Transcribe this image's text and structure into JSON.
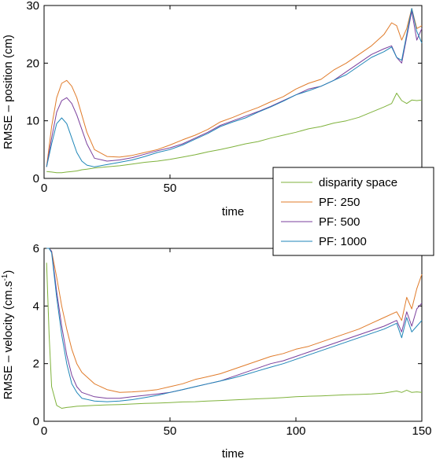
{
  "colors": {
    "disparity": "#7fb23c",
    "pf250": "#e07b2a",
    "pf500": "#7a3f9c",
    "pf1000": "#1f86b8"
  },
  "legend": {
    "entries": [
      "disparity space",
      "PF: 250",
      "PF: 500",
      "PF: 1000"
    ],
    "placement": "overlapping bottom-right of top plot"
  },
  "chart_data": [
    {
      "type": "line",
      "title": "",
      "xlabel": "time",
      "ylabel": "RMSE – position (cm)",
      "xlim": [
        0,
        150
      ],
      "ylim": [
        0,
        30
      ],
      "xticks": [
        0,
        50,
        100,
        150
      ],
      "yticks": [
        0,
        10,
        20,
        30
      ],
      "grid": false,
      "x": [
        1,
        3,
        5,
        7,
        9,
        11,
        13,
        15,
        17,
        20,
        25,
        30,
        35,
        40,
        45,
        50,
        55,
        60,
        65,
        70,
        75,
        80,
        85,
        90,
        95,
        100,
        105,
        110,
        115,
        120,
        125,
        130,
        135,
        138,
        140,
        142,
        144,
        146,
        148,
        150
      ],
      "series": [
        {
          "name": "disparity space",
          "color_key": "disparity",
          "values": [
            1.2,
            1.1,
            1.0,
            1.0,
            1.1,
            1.2,
            1.3,
            1.5,
            1.6,
            1.8,
            2.0,
            2.2,
            2.5,
            2.8,
            3.0,
            3.3,
            3.7,
            4.1,
            4.6,
            5.0,
            5.5,
            6.0,
            6.4,
            7.0,
            7.5,
            8.0,
            8.6,
            9.0,
            9.6,
            10.0,
            10.6,
            11.5,
            12.4,
            13.0,
            14.8,
            13.5,
            13.0,
            13.6,
            13.5,
            13.6
          ]
        },
        {
          "name": "PF: 250",
          "color_key": "pf250",
          "values": [
            2.0,
            9.0,
            14.0,
            16.5,
            17.0,
            16.0,
            14.0,
            11.0,
            8.0,
            5.0,
            3.8,
            3.7,
            4.0,
            4.5,
            5.0,
            5.8,
            6.7,
            7.5,
            8.5,
            9.8,
            10.6,
            11.5,
            12.3,
            13.3,
            14.2,
            15.5,
            16.5,
            17.2,
            18.8,
            20.0,
            21.5,
            23.0,
            25.0,
            27.0,
            26.5,
            24.0,
            26.0,
            29.5,
            26.0,
            26.5
          ]
        },
        {
          "name": "PF: 500",
          "color_key": "pf500",
          "values": [
            2.0,
            7.0,
            11.5,
            13.5,
            14.0,
            13.0,
            11.0,
            8.5,
            6.0,
            3.5,
            3.0,
            3.2,
            3.6,
            4.2,
            4.8,
            5.3,
            6.0,
            7.0,
            8.0,
            9.2,
            10.0,
            10.8,
            11.6,
            12.5,
            13.5,
            14.5,
            15.5,
            16.0,
            17.0,
            18.5,
            20.0,
            21.5,
            22.5,
            23.0,
            21.0,
            20.0,
            24.5,
            29.0,
            24.0,
            26.0
          ]
        },
        {
          "name": "PF: 1000",
          "color_key": "pf1000",
          "values": [
            2.0,
            6.0,
            9.5,
            10.5,
            9.5,
            7.0,
            4.5,
            3.0,
            2.3,
            2.0,
            2.4,
            2.8,
            3.2,
            3.8,
            4.5,
            5.0,
            5.8,
            6.8,
            7.8,
            9.0,
            9.8,
            10.5,
            11.5,
            12.4,
            13.4,
            14.5,
            15.2,
            16.0,
            17.0,
            18.0,
            19.5,
            21.0,
            22.0,
            22.8,
            21.0,
            20.5,
            25.0,
            29.5,
            25.5,
            23.5
          ]
        }
      ]
    },
    {
      "type": "line",
      "title": "",
      "xlabel": "time",
      "ylabel": "RMSE – velocity (cm.s",
      "ylabel_superscript": "-1",
      "ylabel_suffix": ")",
      "xlim": [
        0,
        150
      ],
      "ylim": [
        0,
        6
      ],
      "xticks": [
        0,
        50,
        100,
        150
      ],
      "yticks": [
        0,
        2,
        4,
        6
      ],
      "grid": false,
      "x": [
        1,
        2,
        3,
        5,
        7,
        9,
        11,
        13,
        15,
        20,
        25,
        30,
        35,
        40,
        45,
        50,
        55,
        60,
        65,
        70,
        75,
        80,
        85,
        90,
        95,
        100,
        105,
        110,
        115,
        120,
        125,
        130,
        135,
        140,
        142,
        144,
        146,
        148,
        150
      ],
      "series": [
        {
          "name": "disparity space",
          "color_key": "disparity",
          "values": [
            5.5,
            3.0,
            1.2,
            0.55,
            0.45,
            0.48,
            0.5,
            0.52,
            0.53,
            0.55,
            0.57,
            0.58,
            0.6,
            0.62,
            0.63,
            0.65,
            0.67,
            0.68,
            0.7,
            0.72,
            0.74,
            0.76,
            0.78,
            0.8,
            0.82,
            0.85,
            0.87,
            0.88,
            0.9,
            0.92,
            0.93,
            0.95,
            0.98,
            1.05,
            1.0,
            1.08,
            1.0,
            1.02,
            1.0
          ]
        },
        {
          "name": "PF: 250",
          "color_key": "pf250",
          "values": [
            6.0,
            6.0,
            5.9,
            5.0,
            4.0,
            3.2,
            2.5,
            2.0,
            1.7,
            1.3,
            1.1,
            1.0,
            1.02,
            1.05,
            1.1,
            1.2,
            1.3,
            1.45,
            1.55,
            1.65,
            1.8,
            1.95,
            2.1,
            2.25,
            2.35,
            2.5,
            2.6,
            2.75,
            2.9,
            3.05,
            3.2,
            3.4,
            3.6,
            3.8,
            3.5,
            4.3,
            3.9,
            4.6,
            5.1
          ]
        },
        {
          "name": "PF: 500",
          "color_key": "pf500",
          "values": [
            6.0,
            6.0,
            5.9,
            4.5,
            3.3,
            2.3,
            1.6,
            1.2,
            1.0,
            0.85,
            0.8,
            0.8,
            0.85,
            0.9,
            0.95,
            1.0,
            1.1,
            1.2,
            1.3,
            1.4,
            1.55,
            1.7,
            1.85,
            2.0,
            2.1,
            2.25,
            2.4,
            2.55,
            2.7,
            2.85,
            3.0,
            3.15,
            3.3,
            3.5,
            3.1,
            3.8,
            3.3,
            3.9,
            4.1
          ]
        },
        {
          "name": "PF: 1000",
          "color_key": "pf1000",
          "values": [
            6.0,
            6.0,
            5.85,
            4.3,
            3.0,
            2.0,
            1.3,
            1.0,
            0.8,
            0.7,
            0.68,
            0.7,
            0.75,
            0.82,
            0.9,
            1.0,
            1.1,
            1.2,
            1.3,
            1.4,
            1.5,
            1.62,
            1.75,
            1.88,
            2.0,
            2.15,
            2.3,
            2.45,
            2.6,
            2.75,
            2.9,
            3.05,
            3.2,
            3.4,
            2.9,
            3.6,
            3.1,
            3.3,
            3.5
          ]
        }
      ]
    }
  ]
}
